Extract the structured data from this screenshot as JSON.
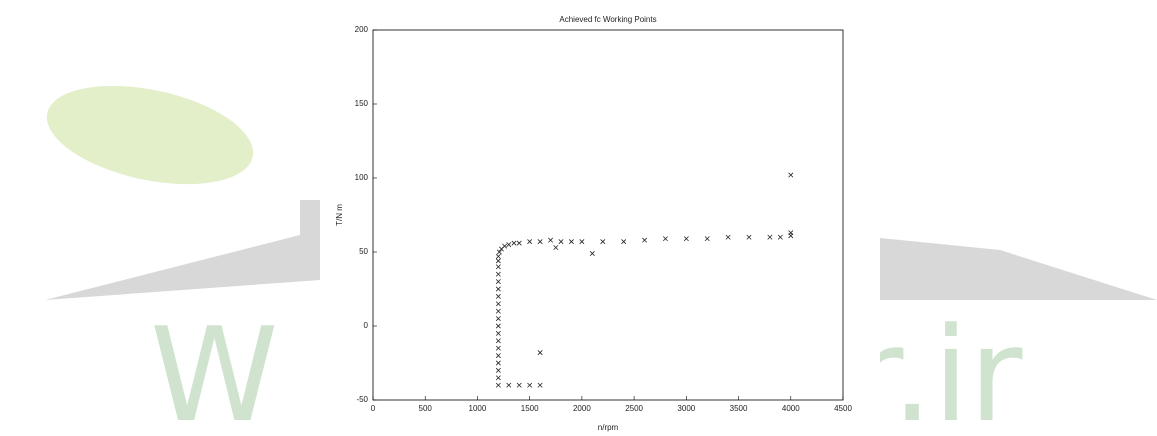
{
  "watermark": {
    "left": "W",
    "right": "r.ir"
  },
  "chart_data": {
    "type": "scatter",
    "title": "Achieved fc Working Points",
    "x_label": "n/rpm",
    "y_label": "T/N m",
    "color": "#222222",
    "marker": "x",
    "xlim": [
      0,
      4500
    ],
    "xticks": [
      0,
      500,
      1000,
      1500,
      2000,
      2500,
      3000,
      3500,
      4000,
      4500
    ],
    "ylim": [
      -50,
      200
    ],
    "yticks": [
      -50,
      0,
      50,
      100,
      150,
      200
    ],
    "x": [
      1200,
      1200,
      1200,
      1200,
      1200,
      1200,
      1200,
      1200,
      1200,
      1200,
      1200,
      1200,
      1200,
      1200,
      1200,
      1200,
      1200,
      1200,
      1200,
      1210,
      1230,
      1260,
      1300,
      1350,
      1400,
      1500,
      1600,
      1700,
      1800,
      1900,
      2000,
      2200,
      2400,
      2600,
      2800,
      3000,
      3200,
      3400,
      3600,
      3800,
      3900,
      4000,
      4000,
      4000,
      1600,
      2100,
      1750,
      1300,
      1400,
      1500,
      1600
    ],
    "values": [
      -40,
      -35,
      -30,
      -25,
      -20,
      -15,
      -10,
      -5,
      0,
      5,
      10,
      15,
      20,
      25,
      30,
      35,
      40,
      44,
      47,
      50,
      52,
      54,
      55,
      56,
      56,
      57,
      57,
      58,
      57,
      57,
      57,
      57,
      57,
      58,
      59,
      59,
      59,
      60,
      60,
      60,
      60,
      61,
      63,
      102,
      -18,
      49,
      53,
      -40,
      -40,
      -40,
      -40
    ]
  }
}
